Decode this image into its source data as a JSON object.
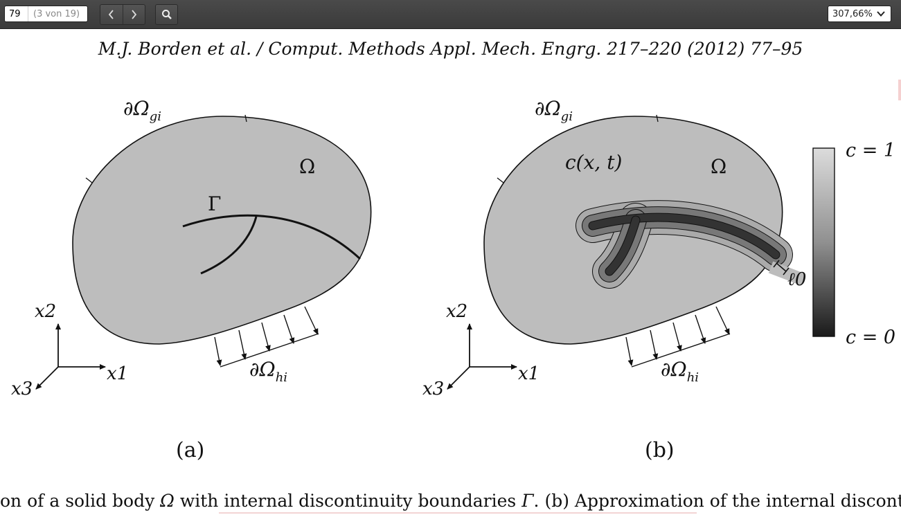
{
  "toolbar": {
    "page_number": "79",
    "page_count": "(3 von 19)",
    "zoom_value": "307,66%",
    "icons": [
      "chevron-left-icon",
      "chevron-right-icon",
      "search-icon",
      "chevron-down-icon"
    ]
  },
  "document": {
    "header": "M.J. Borden et al. / Comput. Methods Appl. Mech. Engrg. 217–220 (2012) 77–95",
    "figure_a": {
      "boundary_g": "∂Ω",
      "boundary_g_sub": "gi",
      "domain": "Ω",
      "crack": "Γ",
      "axis_x1": "x1",
      "axis_x2": "x2",
      "axis_x3": "x3",
      "boundary_h": "∂Ω",
      "boundary_h_sub": "hi",
      "label": "(a)"
    },
    "figure_b": {
      "boundary_g": "∂Ω",
      "boundary_g_sub": "gi",
      "field": "c(x, t)",
      "domain": "Ω",
      "length_scale": "ℓ0",
      "axis_x1": "x1",
      "axis_x2": "x2",
      "axis_x3": "x3",
      "boundary_h": "∂Ω",
      "boundary_h_sub": "hi",
      "label": "(b)"
    },
    "colorbar": {
      "top_label": "c = 1",
      "bottom_label": "c = 0"
    },
    "caption": {
      "part1": "on of a solid body ",
      "omega": "Ω",
      "part2": " with internal discontinuity boundaries ",
      "gamma": "Γ",
      "part3": ". (b) Approximation of the internal discontinu"
    }
  }
}
